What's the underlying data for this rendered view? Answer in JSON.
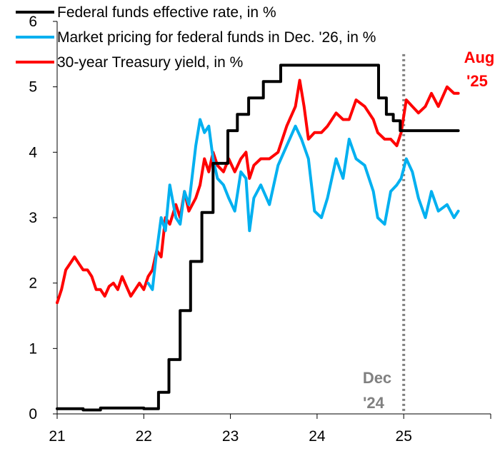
{
  "chart_data": {
    "type": "line",
    "xlabel": "",
    "ylabel": "",
    "xlim": [
      2021.0,
      2026.0
    ],
    "ylim": [
      0,
      6
    ],
    "x_ticks": [
      {
        "label": "21",
        "value": 2021
      },
      {
        "label": "22",
        "value": 2022
      },
      {
        "label": "23",
        "value": 2023
      },
      {
        "label": "24",
        "value": 2024
      },
      {
        "label": "25",
        "value": 2025
      }
    ],
    "y_ticks": [
      {
        "label": "0",
        "value": 0
      },
      {
        "label": "1",
        "value": 1
      },
      {
        "label": "2",
        "value": 2
      },
      {
        "label": "3",
        "value": 3
      },
      {
        "label": "4",
        "value": 4
      },
      {
        "label": "5",
        "value": 5
      },
      {
        "label": "6",
        "value": 6
      }
    ],
    "series": [
      {
        "name": "Federal funds effective rate, in %",
        "color": "#000000",
        "step": true,
        "x": [
          2021.0,
          2021.3,
          2021.5,
          2022.0,
          2022.17,
          2022.29,
          2022.42,
          2022.54,
          2022.67,
          2022.8,
          2022.97,
          2023.08,
          2023.21,
          2023.38,
          2023.58,
          2024.71,
          2024.8,
          2024.88,
          2024.96,
          2025.63
        ],
        "y": [
          0.08,
          0.06,
          0.09,
          0.08,
          0.33,
          0.83,
          1.58,
          2.33,
          3.08,
          3.83,
          4.33,
          4.58,
          4.83,
          5.08,
          5.33,
          4.83,
          4.58,
          4.48,
          4.33,
          4.33
        ]
      },
      {
        "name": "Market pricing for federal funds in Dec. '26, in %",
        "color": "#00b0f0",
        "x": [
          2022.05,
          2022.1,
          2022.15,
          2022.2,
          2022.25,
          2022.3,
          2022.37,
          2022.42,
          2022.47,
          2022.52,
          2022.6,
          2022.65,
          2022.7,
          2022.75,
          2022.8,
          2022.85,
          2022.92,
          2022.98,
          2023.05,
          2023.12,
          2023.18,
          2023.22,
          2023.27,
          2023.35,
          2023.45,
          2023.55,
          2023.65,
          2023.75,
          2023.82,
          2023.9,
          2023.97,
          2024.05,
          2024.12,
          2024.22,
          2024.3,
          2024.37,
          2024.45,
          2024.55,
          2024.65,
          2024.7,
          2024.78,
          2024.85,
          2024.92,
          2024.97,
          2025.03,
          2025.1,
          2025.17,
          2025.25,
          2025.32,
          2025.4,
          2025.5,
          2025.58,
          2025.63
        ],
        "y": [
          2.0,
          1.9,
          2.5,
          3.0,
          2.8,
          3.5,
          3.0,
          2.9,
          3.4,
          3.2,
          4.1,
          4.5,
          4.3,
          4.4,
          3.9,
          3.6,
          3.5,
          3.3,
          3.1,
          3.7,
          3.6,
          2.8,
          3.3,
          3.5,
          3.2,
          3.8,
          4.1,
          4.4,
          4.2,
          3.9,
          3.1,
          3.0,
          3.3,
          3.9,
          3.6,
          4.2,
          3.9,
          3.8,
          3.4,
          3.0,
          2.9,
          3.4,
          3.5,
          3.6,
          3.9,
          3.7,
          3.3,
          3.0,
          3.4,
          3.1,
          3.2,
          3.0,
          3.1
        ]
      },
      {
        "name": "30-year Treasury yield, in %",
        "color": "#ff0000",
        "x": [
          2021.0,
          2021.05,
          2021.1,
          2021.15,
          2021.2,
          2021.25,
          2021.3,
          2021.35,
          2021.4,
          2021.45,
          2021.5,
          2021.55,
          2021.6,
          2021.65,
          2021.7,
          2021.75,
          2021.8,
          2021.85,
          2021.9,
          2021.95,
          2022.0,
          2022.05,
          2022.1,
          2022.15,
          2022.2,
          2022.25,
          2022.3,
          2022.37,
          2022.42,
          2022.47,
          2022.52,
          2022.6,
          2022.65,
          2022.7,
          2022.75,
          2022.8,
          2022.85,
          2022.92,
          2022.98,
          2023.05,
          2023.12,
          2023.18,
          2023.22,
          2023.27,
          2023.35,
          2023.45,
          2023.55,
          2023.65,
          2023.75,
          2023.8,
          2023.85,
          2023.9,
          2023.97,
          2024.05,
          2024.12,
          2024.22,
          2024.3,
          2024.37,
          2024.45,
          2024.55,
          2024.65,
          2024.7,
          2024.78,
          2024.85,
          2024.92,
          2024.97,
          2025.03,
          2025.1,
          2025.17,
          2025.25,
          2025.32,
          2025.4,
          2025.5,
          2025.58,
          2025.63
        ],
        "y": [
          1.7,
          1.9,
          2.2,
          2.3,
          2.4,
          2.3,
          2.2,
          2.2,
          2.1,
          1.9,
          1.9,
          1.8,
          1.95,
          2.0,
          1.9,
          2.1,
          1.95,
          1.8,
          1.9,
          2.0,
          1.9,
          2.1,
          2.2,
          2.5,
          2.4,
          3.0,
          2.9,
          3.2,
          3.0,
          3.4,
          3.1,
          3.3,
          3.5,
          3.9,
          3.7,
          4.0,
          3.8,
          3.7,
          3.9,
          3.7,
          3.9,
          4.0,
          3.6,
          3.8,
          3.9,
          3.9,
          4.0,
          4.4,
          4.7,
          5.1,
          4.7,
          4.2,
          4.3,
          4.3,
          4.4,
          4.6,
          4.5,
          4.5,
          4.8,
          4.7,
          4.5,
          4.3,
          4.2,
          4.2,
          4.1,
          4.3,
          4.8,
          4.7,
          4.6,
          4.7,
          4.9,
          4.7,
          5.0,
          4.9,
          4.9
        ]
      }
    ],
    "vline": {
      "x": 2025.0,
      "color": "#808080",
      "style": "dotted"
    },
    "annotations": [
      {
        "text_lines": [
          "Dec",
          "'24"
        ],
        "color": "#808080"
      },
      {
        "text_lines": [
          "Aug",
          "'25"
        ],
        "color": "#ff0000"
      }
    ]
  }
}
